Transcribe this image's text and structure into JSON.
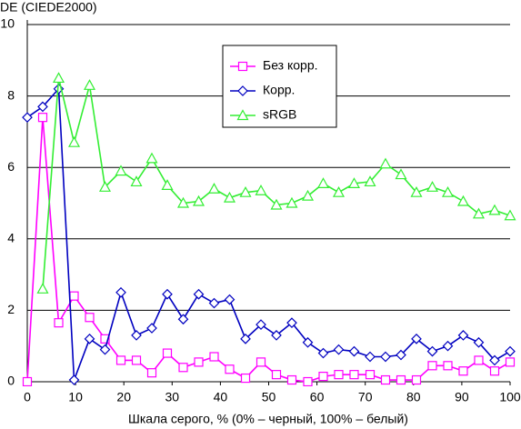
{
  "chart_data": {
    "type": "line",
    "y_label": "DE (CIEDE2000)",
    "x_label": "Шкала серого, % (0% – черный, 100% – белый)",
    "x": [
      0,
      3.2,
      6.5,
      9.7,
      12.9,
      16.1,
      19.4,
      22.6,
      25.8,
      29,
      32.3,
      35.5,
      38.7,
      41.9,
      45.2,
      48.4,
      51.6,
      54.8,
      58.1,
      61.3,
      64.5,
      67.7,
      71,
      74.2,
      77.4,
      80.6,
      83.9,
      87.1,
      90.3,
      93.5,
      96.8,
      100
    ],
    "series": [
      {
        "name": "Без корр.",
        "color": "#ff00ff",
        "marker": "square",
        "values": [
          0,
          7.4,
          1.65,
          2.4,
          1.8,
          1.2,
          0.6,
          0.6,
          0.25,
          0.8,
          0.4,
          0.55,
          0.7,
          0.35,
          0.1,
          0.55,
          0.2,
          0.05,
          0,
          0.15,
          0.2,
          0.2,
          0.2,
          0.05,
          0.05,
          0.05,
          0.45,
          0.45,
          0.3,
          0.6,
          0.3,
          0.55
        ]
      },
      {
        "name": "Корр.",
        "color": "#0000c0",
        "marker": "diamond",
        "values": [
          7.4,
          7.7,
          8.2,
          0.05,
          1.2,
          0.9,
          2.5,
          1.3,
          1.5,
          2.45,
          1.75,
          2.45,
          2.2,
          2.3,
          1.2,
          1.6,
          1.3,
          1.65,
          1.1,
          0.8,
          0.9,
          0.85,
          0.7,
          0.7,
          0.75,
          1.2,
          0.85,
          1.0,
          1.3,
          1.1,
          0.6,
          0.85
        ]
      },
      {
        "name": "sRGB",
        "color": "#33ee33",
        "marker": "triangle",
        "values": [
          null,
          2.6,
          8.5,
          6.7,
          8.3,
          5.45,
          5.9,
          5.6,
          6.25,
          5.5,
          5.0,
          5.05,
          5.4,
          5.15,
          5.3,
          5.35,
          4.95,
          5.0,
          5.2,
          5.55,
          5.3,
          5.55,
          5.6,
          6.1,
          5.8,
          5.3,
          5.45,
          5.3,
          5.05,
          4.7,
          4.8,
          4.65
        ]
      }
    ],
    "xlim": [
      0,
      100
    ],
    "xticks": [
      0,
      10,
      20,
      30,
      40,
      50,
      60,
      70,
      80,
      90,
      100
    ],
    "ylim": [
      0,
      10
    ],
    "yticks": [
      0,
      2,
      4,
      6,
      8,
      10
    ],
    "grid": true
  }
}
